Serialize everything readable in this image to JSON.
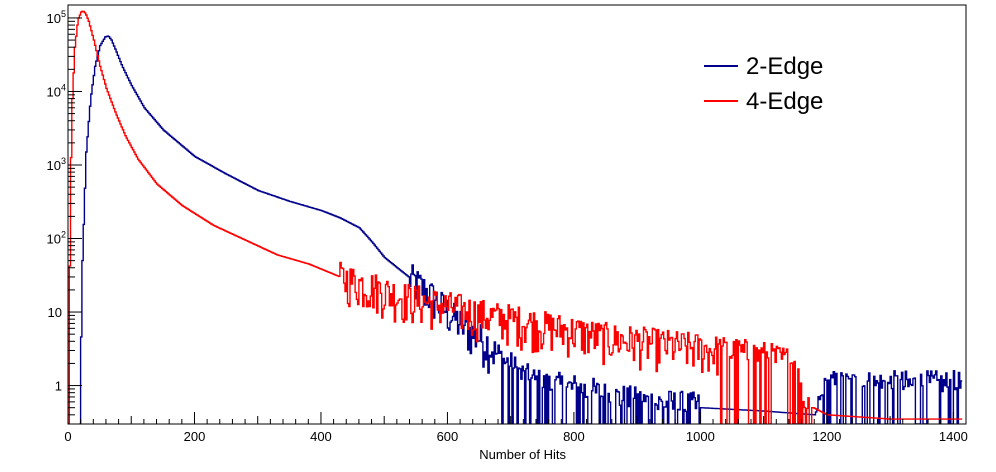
{
  "chart_data": {
    "type": "line",
    "title": "",
    "xlabel": "Number of Hits",
    "ylabel": "",
    "xlim": [
      0,
      1420
    ],
    "ylim": [
      0.3,
      150000
    ],
    "y_scale": "log",
    "grid": false,
    "legend_position": "top-right",
    "x_ticks": [
      0,
      200,
      400,
      600,
      800,
      1000,
      1200,
      1400
    ],
    "y_ticks": [
      {
        "value": 1,
        "base": "1",
        "exp": ""
      },
      {
        "value": 10,
        "base": "10",
        "exp": ""
      },
      {
        "value": 100,
        "base": "10",
        "exp": "2"
      },
      {
        "value": 1000,
        "base": "10",
        "exp": "3"
      },
      {
        "value": 10000,
        "base": "10",
        "exp": "4"
      },
      {
        "value": 100000,
        "base": "10",
        "exp": "5"
      }
    ],
    "series": [
      {
        "name": "2-Edge",
        "color": "#00008b",
        "x": [
          18,
          22,
          28,
          35,
          42,
          50,
          58,
          63,
          68,
          75,
          85,
          100,
          120,
          150,
          200,
          250,
          300,
          350,
          400,
          430,
          460,
          480,
          500,
          520,
          550,
          580,
          600,
          620,
          640,
          660,
          680,
          700,
          720,
          750,
          800,
          830,
          850,
          900,
          1000,
          1100,
          1180,
          1200,
          1270,
          1280,
          1412
        ],
        "y": [
          0.3,
          50,
          1500,
          8000,
          22000,
          42000,
          55000,
          57000,
          50000,
          36000,
          22000,
          12000,
          6000,
          3000,
          1300,
          750,
          450,
          320,
          240,
          190,
          140,
          90,
          55,
          40,
          25,
          15,
          10,
          7,
          5,
          4,
          2.5,
          1.8,
          1.3,
          1,
          0.9,
          0.8,
          0.7,
          0.6,
          0.5,
          0.45,
          0.4,
          1,
          1,
          1,
          1
        ]
      },
      {
        "name": "4-Edge",
        "color": "#ff0000",
        "x": [
          0,
          3,
          6,
          10,
          15,
          20,
          23,
          27,
          32,
          40,
          50,
          60,
          75,
          90,
          110,
          140,
          180,
          230,
          280,
          330,
          380,
          430,
          480,
          530,
          580,
          620,
          660,
          700,
          750,
          800,
          850,
          900,
          1000,
          1100,
          1150,
          1160,
          1200,
          1300,
          1412
        ],
        "y": [
          0.3,
          500,
          8000,
          40000,
          95000,
          120000,
          125000,
          115000,
          90000,
          50000,
          22000,
          11000,
          5000,
          2500,
          1200,
          550,
          280,
          150,
          95,
          60,
          45,
          30,
          22,
          16,
          13,
          11,
          9,
          8,
          6.5,
          5.5,
          4.5,
          4,
          3.2,
          2.5,
          2,
          0.6,
          0.4,
          0.35,
          0.35
        ]
      }
    ]
  }
}
